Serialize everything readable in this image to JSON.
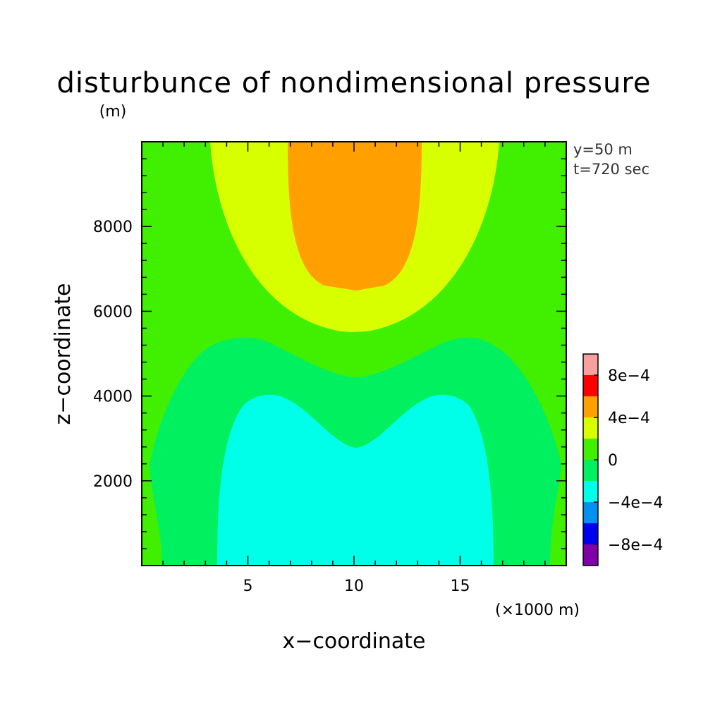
{
  "chart_data": {
    "type": "heatmap",
    "subtype": "filled-contour",
    "title": "disturbunce of nondimensional pressure",
    "xlabel": "x−coordinate",
    "ylabel": "z−coordinate",
    "x_unit": "(×1000 m)",
    "y_unit": "(m)",
    "xlim": [
      0,
      20
    ],
    "ylim": [
      0,
      10000
    ],
    "x_ticks": [
      5,
      10,
      15
    ],
    "y_ticks": [
      2000,
      4000,
      6000,
      8000
    ],
    "x_tick_labels": [
      "5",
      "10",
      "15"
    ],
    "y_tick_labels": [
      "2000",
      "4000",
      "6000",
      "8000"
    ],
    "annotations": [
      "y=50 m",
      "t=720 sec"
    ],
    "colorbar": {
      "levels": [
        -0.001,
        -0.0008,
        -0.0006,
        -0.0004,
        -0.0002,
        0,
        0.0002,
        0.0004,
        0.0006,
        0.0008,
        0.001
      ],
      "colors": [
        "#8000a8",
        "#0000f0",
        "#0090f0",
        "#00ffe8",
        "#00f060",
        "#40f000",
        "#d8ff00",
        "#ffa000",
        "#ff0000",
        "#f8a0a0"
      ],
      "tick_values": [
        -0.0008,
        -0.0004,
        0,
        0.0004,
        0.0008
      ],
      "tick_labels": [
        "−8e−4",
        "−4e−4",
        "0",
        "4e−4",
        "8e−4"
      ]
    },
    "regions": [
      {
        "range": [
          0,
          0.0002
        ],
        "color": "#40f000",
        "description": "background"
      },
      {
        "range": [
          0.0002,
          0.0004
        ],
        "color": "#d8ff00",
        "center_x": 10,
        "top_z": 10000,
        "bottom_z": 5500
      },
      {
        "range": [
          0.0004,
          0.0006
        ],
        "color": "#ffa000",
        "center_x": 10,
        "top_z": 10000,
        "bottom_z": 6500
      },
      {
        "range": [
          -0.0002,
          0
        ],
        "color": "#00f060",
        "center_x": 10,
        "top_z_center": 4500,
        "top_z_peaks": 5400
      },
      {
        "range": [
          -0.0004,
          -0.0002
        ],
        "color": "#00ffe8",
        "center_x": 10,
        "top_z_center": 2800,
        "top_z_peaks": 4000
      }
    ]
  }
}
